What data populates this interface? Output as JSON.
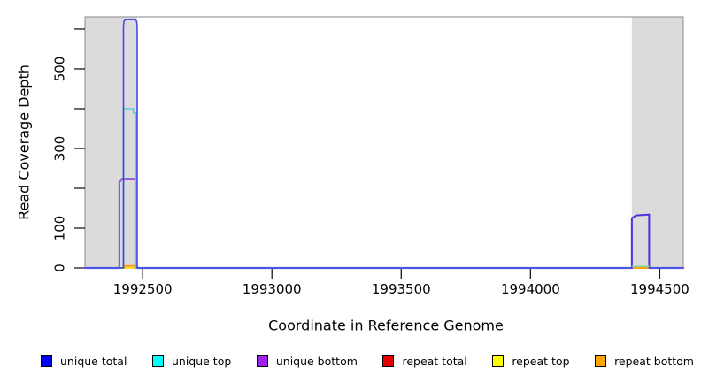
{
  "chart_data": {
    "type": "line",
    "title": "",
    "xlabel": "Coordinate in Reference Genome",
    "ylabel": "Read Coverage Depth",
    "grid": false,
    "legend_position": "bottom",
    "band_color": "#DBDBDB",
    "frame_color": "#9A9A9A",
    "tick_color": "#1A1A1A",
    "x_axis": {
      "min": 1992277,
      "max": 1994591,
      "ticks": [
        {
          "value": 1992500,
          "label": "1992500"
        },
        {
          "value": 1993000,
          "label": "1993000"
        },
        {
          "value": 1993500,
          "label": "1993500"
        },
        {
          "value": 1994000,
          "label": "1994000"
        },
        {
          "value": 1994500,
          "label": "1994500"
        }
      ]
    },
    "y_axis": {
      "min": 0,
      "max": 631,
      "ticks": [
        {
          "value": 0,
          "label": "0"
        },
        {
          "value": 100,
          "label": "100"
        },
        {
          "value": 200,
          "label": ""
        },
        {
          "value": 300,
          "label": "300"
        },
        {
          "value": 400,
          "label": ""
        },
        {
          "value": 500,
          "label": "500"
        },
        {
          "value": 600,
          "label": ""
        }
      ]
    },
    "shaded_regions": [
      {
        "name": "repeat-region-left",
        "x1": 1992277,
        "x2": 1992478
      },
      {
        "name": "repeat-region-right",
        "x1": 1994392,
        "x2": 1994591
      }
    ],
    "series": [
      {
        "name": "repeat total",
        "color": "#E60000",
        "width": 1.6,
        "opacity": 1,
        "points": [
          [
            1992277,
            0
          ],
          [
            1994591,
            0
          ]
        ]
      },
      {
        "name": "repeat top",
        "color": "#FFFF00",
        "width": 1.6,
        "opacity": 1,
        "points": [
          [
            1992277,
            0
          ],
          [
            1994591,
            0
          ]
        ]
      },
      {
        "name": "repeat bottom",
        "color": "#FF9E00",
        "width": 1.8,
        "opacity": 1,
        "points": [
          [
            1992277,
            0
          ],
          [
            1992428,
            0
          ],
          [
            1992428,
            5
          ],
          [
            1992478,
            5
          ],
          [
            1992478,
            0
          ],
          [
            1994591,
            0
          ]
        ]
      },
      {
        "name": "unique bottom",
        "color": "#9455D4",
        "width": 2.2,
        "opacity": 1,
        "points": [
          [
            1992277,
            0
          ],
          [
            1992410,
            0
          ],
          [
            1992410,
            215
          ],
          [
            1992420,
            224
          ],
          [
            1992472,
            224
          ],
          [
            1992472,
            0
          ],
          [
            1994392,
            0
          ],
          [
            1994392,
            125
          ],
          [
            1994409,
            132
          ],
          [
            1994459,
            134
          ],
          [
            1994459,
            0
          ],
          [
            1994591,
            0
          ]
        ]
      },
      {
        "name": "unique top",
        "color": "#55CEE2",
        "width": 1.6,
        "opacity": 1,
        "points": [
          [
            1992277,
            0
          ],
          [
            1992426,
            0
          ],
          [
            1992426,
            400
          ],
          [
            1992464,
            400
          ],
          [
            1992464,
            389
          ],
          [
            1992475,
            389
          ],
          [
            1992475,
            0
          ],
          [
            1994392,
            0
          ],
          [
            1994392,
            4
          ],
          [
            1994459,
            4
          ],
          [
            1994459,
            0
          ],
          [
            1994591,
            0
          ]
        ]
      },
      {
        "name": "unique total",
        "color": "#3232EC",
        "width": 1.6,
        "opacity": 0.88,
        "points": [
          [
            1992277,
            0
          ],
          [
            1992426,
            0
          ],
          [
            1992426,
            608
          ],
          [
            1992428,
            620
          ],
          [
            1992433,
            624
          ],
          [
            1992471,
            624
          ],
          [
            1992477,
            620
          ],
          [
            1992479,
            608
          ],
          [
            1992479,
            0
          ],
          [
            1994392,
            0
          ],
          [
            1994392,
            125
          ],
          [
            1994409,
            132
          ],
          [
            1994459,
            134
          ],
          [
            1994459,
            0
          ],
          [
            1994591,
            0
          ]
        ]
      }
    ],
    "overlap_segments": [
      {
        "name": "top-strand-overlap",
        "color": "#90D890",
        "x1": 1994392,
        "x2": 1994459,
        "value": 4
      }
    ],
    "legend": [
      {
        "label": "unique total",
        "color": "#0000EE"
      },
      {
        "label": "unique top",
        "color": "#00FFFF"
      },
      {
        "label": "unique bottom",
        "color": "#A020F0"
      },
      {
        "label": "repeat total",
        "color": "#E60000"
      },
      {
        "label": "repeat top",
        "color": "#FFFF00"
      },
      {
        "label": "repeat bottom",
        "color": "#FFA500"
      }
    ]
  }
}
